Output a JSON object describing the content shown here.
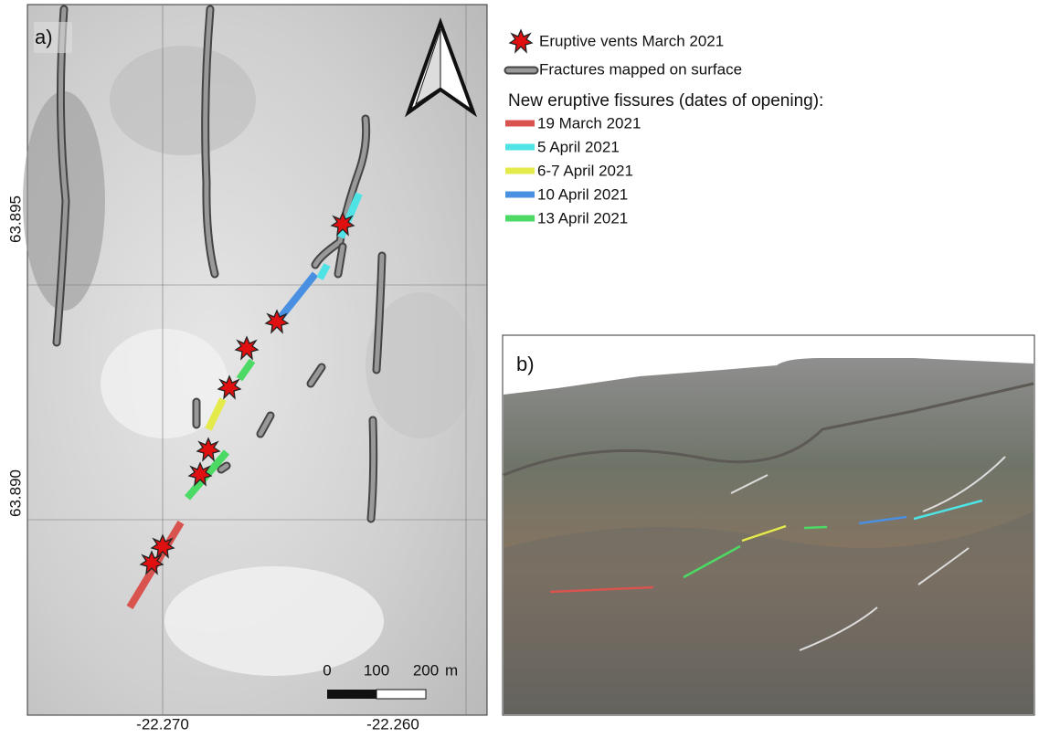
{
  "panel_a": {
    "label": "a)",
    "lat_ticks": [
      "63.895",
      "63.890"
    ],
    "lon_ticks": [
      "-22.270",
      "-22.260"
    ],
    "scale_bar": {
      "labels": [
        "0",
        "100",
        "200"
      ],
      "unit": "m"
    }
  },
  "panel_b": {
    "label": "b)"
  },
  "legend": {
    "vents": "Eruptive vents March 2021",
    "fractures": "Fractures mapped on surface",
    "fissures_heading": "New eruptive fissures (dates of opening):",
    "fissures": [
      {
        "label": "19 March 2021",
        "color": "#d9534f"
      },
      {
        "label": "5 April 2021",
        "color": "#4fe3e6"
      },
      {
        "label": "6-7 April 2021",
        "color": "#e4ea4a"
      },
      {
        "label": "10 April 2021",
        "color": "#4a90e2"
      },
      {
        "label": "13 April 2021",
        "color": "#4cd964"
      }
    ]
  }
}
